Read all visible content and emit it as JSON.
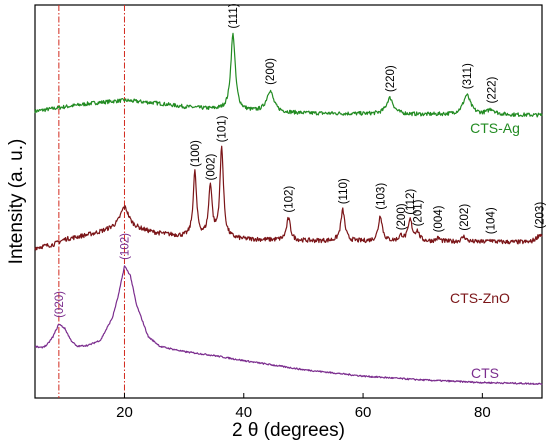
{
  "chart_data": {
    "type": "line",
    "xlabel": "2 θ (degrees)",
    "ylabel": "Intensity (a. u.)",
    "xlim": [
      5,
      90
    ],
    "x_ticks": [
      20,
      40,
      60,
      80
    ],
    "x_tick_labels": [
      "20",
      "40",
      "60",
      "80"
    ],
    "grid": false,
    "reference_lines_x": [
      9,
      20
    ],
    "series": [
      {
        "name": "CTS-Ag",
        "color": "#228B22",
        "baseline": [
          [
            5,
            4.45
          ],
          [
            10,
            4.52
          ],
          [
            15,
            4.58
          ],
          [
            20,
            4.62
          ],
          [
            25,
            4.58
          ],
          [
            30,
            4.52
          ],
          [
            35,
            4.48
          ],
          [
            40,
            4.45
          ],
          [
            50,
            4.42
          ],
          [
            60,
            4.41
          ],
          [
            70,
            4.4
          ],
          [
            80,
            4.4
          ],
          [
            90,
            4.39
          ]
        ],
        "peaks": [
          {
            "x": 38.2,
            "height": 1.18,
            "width": 0.45,
            "label": "(111)"
          },
          {
            "x": 44.4,
            "height": 0.33,
            "width": 0.7,
            "label": "(200)"
          },
          {
            "x": 64.5,
            "height": 0.25,
            "width": 0.7,
            "label": "(220)"
          },
          {
            "x": 77.4,
            "height": 0.3,
            "width": 0.75,
            "label": "(311)"
          },
          {
            "x": 81.5,
            "height": 0.08,
            "width": 0.7,
            "label": "(222)"
          }
        ]
      },
      {
        "name": "CTS-ZnO",
        "color": "#7B1518",
        "baseline": [
          [
            5,
            2.33
          ],
          [
            8,
            2.38
          ],
          [
            10,
            2.46
          ],
          [
            15,
            2.55
          ],
          [
            18,
            2.62
          ],
          [
            20,
            2.64
          ],
          [
            22,
            2.62
          ],
          [
            25,
            2.56
          ],
          [
            30,
            2.5
          ],
          [
            40,
            2.46
          ],
          [
            50,
            2.44
          ],
          [
            60,
            2.43
          ],
          [
            70,
            2.43
          ],
          [
            80,
            2.42
          ],
          [
            88,
            2.42
          ],
          [
            90,
            2.5
          ]
        ],
        "peaks": [
          {
            "x": 20.0,
            "height": 0.32,
            "width": 0.9,
            "label": ""
          },
          {
            "x": 31.8,
            "height": 1.0,
            "width": 0.35,
            "label": "(100)"
          },
          {
            "x": 34.4,
            "height": 0.8,
            "width": 0.35,
            "label": "(002)"
          },
          {
            "x": 36.3,
            "height": 1.4,
            "width": 0.35,
            "label": "(101)"
          },
          {
            "x": 47.5,
            "height": 0.34,
            "width": 0.4,
            "label": "(102)"
          },
          {
            "x": 56.6,
            "height": 0.48,
            "width": 0.4,
            "label": "(110)"
          },
          {
            "x": 62.9,
            "height": 0.4,
            "width": 0.4,
            "label": "(103)"
          },
          {
            "x": 66.4,
            "height": 0.08,
            "width": 0.4,
            "label": "(200)"
          },
          {
            "x": 67.9,
            "height": 0.32,
            "width": 0.4,
            "label": "(112)"
          },
          {
            "x": 69.1,
            "height": 0.14,
            "width": 0.4,
            "label": "(201)"
          },
          {
            "x": 72.6,
            "height": 0.05,
            "width": 0.4,
            "label": "(004)"
          },
          {
            "x": 76.9,
            "height": 0.08,
            "width": 0.45,
            "label": "(202)"
          },
          {
            "x": 81.4,
            "height": 0.03,
            "width": 0.45,
            "label": "(104)"
          },
          {
            "x": 89.6,
            "height": 0.05,
            "width": 0.45,
            "label": "(203)"
          }
        ]
      },
      {
        "name": "CTS",
        "color": "#7B2D8E",
        "baseline": [
          [
            5,
            0.8
          ],
          [
            6,
            0.78
          ],
          [
            7,
            0.82
          ],
          [
            8,
            0.95
          ],
          [
            9,
            1.15
          ],
          [
            10,
            1.08
          ],
          [
            11,
            0.9
          ],
          [
            12,
            0.8
          ],
          [
            14,
            0.82
          ],
          [
            16,
            0.9
          ],
          [
            18,
            1.25
          ],
          [
            19,
            1.6
          ],
          [
            20,
            2.05
          ],
          [
            21,
            1.9
          ],
          [
            22,
            1.45
          ],
          [
            24,
            0.95
          ],
          [
            26,
            0.8
          ],
          [
            30,
            0.72
          ],
          [
            35,
            0.66
          ],
          [
            40,
            0.58
          ],
          [
            50,
            0.44
          ],
          [
            60,
            0.34
          ],
          [
            70,
            0.28
          ],
          [
            80,
            0.24
          ],
          [
            90,
            0.22
          ]
        ],
        "peaks": [
          {
            "x": 9.0,
            "height": 0.0,
            "width": 1.0,
            "label": "(020)"
          },
          {
            "x": 20.0,
            "height": 0.0,
            "width": 1.0,
            "label": "(102)"
          }
        ]
      }
    ],
    "series_labels": [
      "CTS-Ag",
      "CTS-ZnO",
      "CTS"
    ]
  }
}
